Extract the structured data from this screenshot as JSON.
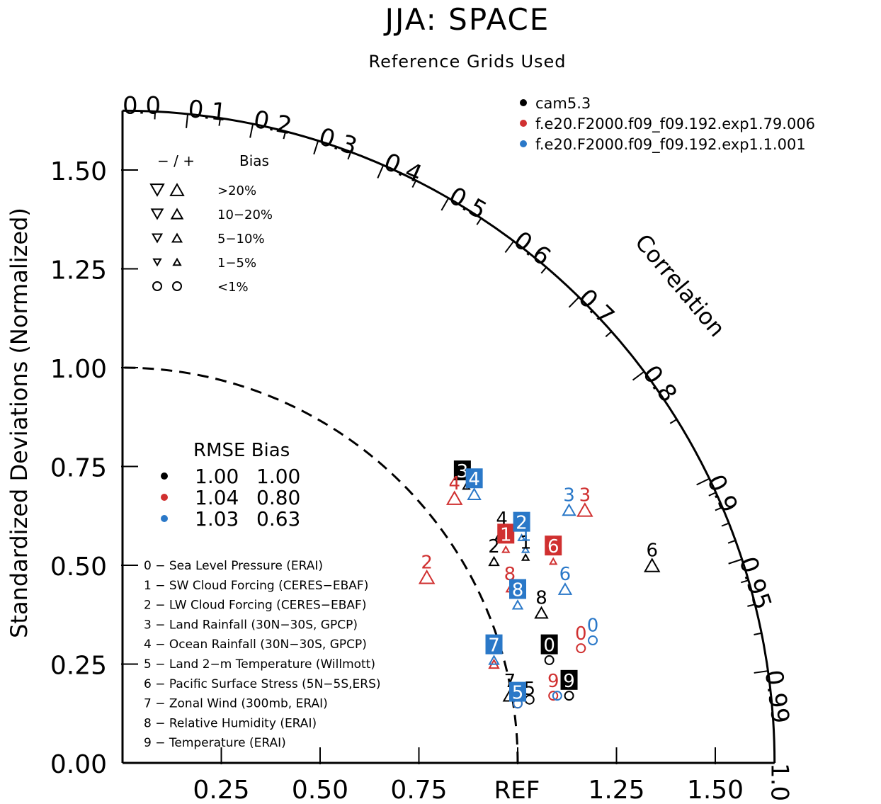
{
  "chart_data": {
    "type": "scatter",
    "diagram": "taylor",
    "title": "JJA: SPACE",
    "subtitle": "Reference Grids Used",
    "ylabel": "Standardized Deviations (Normalized)",
    "angular_label": "Correlation",
    "x_ref_label": "REF",
    "xlim": [
      0,
      1.65
    ],
    "ylim": [
      0,
      1.65
    ],
    "std_ticks_y": [
      "0.00",
      "0.25",
      "0.50",
      "0.75",
      "1.00",
      "1.25",
      "1.50"
    ],
    "std_ticks_x": [
      "0.25",
      "0.50",
      "0.75",
      "1.25",
      "1.50"
    ],
    "correlation_ticks": [
      "0.0",
      "0.1",
      "0.2",
      "0.3",
      "0.4",
      "0.5",
      "0.6",
      "0.7",
      "0.8",
      "0.9",
      "0.95",
      "0.99",
      "1.0"
    ],
    "series": [
      {
        "name": "cam5.3",
        "color": "#000000",
        "rmse": "1.00",
        "bias": "1.00",
        "points": [
          {
            "id": "0",
            "x": 1.08,
            "y": 0.26,
            "bias_class": "<1%"
          },
          {
            "id": "1",
            "x": 1.02,
            "y": 0.52,
            "bias_class": "1-5%"
          },
          {
            "id": "2",
            "x": 0.94,
            "y": 0.51,
            "bias_class": "5-10%"
          },
          {
            "id": "3",
            "x": 0.87,
            "y": 0.7,
            "bias_class": "1-5%"
          },
          {
            "id": "4",
            "x": 0.96,
            "y": 0.58,
            "bias_class": "10-20%"
          },
          {
            "id": "5",
            "x": 1.03,
            "y": 0.16,
            "bias_class": "<1%"
          },
          {
            "id": "6",
            "x": 1.34,
            "y": 0.5,
            "bias_class": ">20%"
          },
          {
            "id": "7",
            "x": 0.98,
            "y": 0.17,
            "bias_class": "10-20%"
          },
          {
            "id": "8",
            "x": 1.06,
            "y": 0.38,
            "bias_class": "10-20%"
          },
          {
            "id": "9",
            "x": 1.13,
            "y": 0.17,
            "bias_class": "<1%"
          }
        ]
      },
      {
        "name": "f.e20.F2000.f09_f09.192.exp1.79.006",
        "color": "#d03030",
        "rmse": "1.04",
        "bias": "0.80",
        "points": [
          {
            "id": "0",
            "x": 1.16,
            "y": 0.29,
            "bias_class": "<1%"
          },
          {
            "id": "1",
            "x": 0.97,
            "y": 0.54,
            "bias_class": "1-5%"
          },
          {
            "id": "2",
            "x": 0.77,
            "y": 0.47,
            "bias_class": ">20%"
          },
          {
            "id": "3",
            "x": 1.17,
            "y": 0.64,
            "bias_class": ">20%"
          },
          {
            "id": "4",
            "x": 0.84,
            "y": 0.67,
            "bias_class": ">20%"
          },
          {
            "id": "5",
            "x": 1.0,
            "y": 0.15,
            "bias_class": "<1%"
          },
          {
            "id": "6",
            "x": 1.09,
            "y": 0.51,
            "bias_class": "1-5%"
          },
          {
            "id": "7",
            "x": 0.94,
            "y": 0.25,
            "bias_class": "5-10%"
          },
          {
            "id": "8",
            "x": 0.98,
            "y": 0.44,
            "bias_class": "1-5%"
          },
          {
            "id": "9",
            "x": 1.09,
            "y": 0.17,
            "bias_class": "<1%"
          }
        ]
      },
      {
        "name": "f.e20.F2000.f09_f09.192.exp1.1.001",
        "color": "#2a78c8",
        "rmse": "1.03",
        "bias": "0.63",
        "points": [
          {
            "id": "0",
            "x": 1.19,
            "y": 0.31,
            "bias_class": "<1%"
          },
          {
            "id": "1",
            "x": 1.02,
            "y": 0.54,
            "bias_class": "1-5%"
          },
          {
            "id": "2",
            "x": 1.01,
            "y": 0.57,
            "bias_class": "1-5%"
          },
          {
            "id": "3",
            "x": 1.13,
            "y": 0.64,
            "bias_class": "10-20%"
          },
          {
            "id": "4",
            "x": 0.89,
            "y": 0.68,
            "bias_class": "10-20%"
          },
          {
            "id": "5",
            "x": 1.0,
            "y": 0.15,
            "bias_class": "<1%"
          },
          {
            "id": "6",
            "x": 1.12,
            "y": 0.44,
            "bias_class": "10-20%"
          },
          {
            "id": "7",
            "x": 0.94,
            "y": 0.26,
            "bias_class": "5-10%"
          },
          {
            "id": "8",
            "x": 1.0,
            "y": 0.4,
            "bias_class": "5-10%"
          },
          {
            "id": "9",
            "x": 1.1,
            "y": 0.17,
            "bias_class": "<1%"
          }
        ]
      }
    ],
    "model_labels": [
      {
        "series": 0,
        "id": "0",
        "x": 1.08,
        "y": 0.3,
        "boxed": true
      },
      {
        "series": 0,
        "id": "1",
        "x": 1.02,
        "y": 0.56,
        "boxed": false
      },
      {
        "series": 0,
        "id": "2",
        "x": 0.94,
        "y": 0.55,
        "boxed": false
      },
      {
        "series": 0,
        "id": "3",
        "x": 0.86,
        "y": 0.74,
        "boxed": true
      },
      {
        "series": 0,
        "id": "4",
        "x": 0.96,
        "y": 0.62,
        "boxed": false
      },
      {
        "series": 0,
        "id": "5",
        "x": 1.03,
        "y": 0.19,
        "boxed": false
      },
      {
        "series": 0,
        "id": "6",
        "x": 1.34,
        "y": 0.54,
        "boxed": false
      },
      {
        "series": 0,
        "id": "7",
        "x": 0.98,
        "y": 0.21,
        "boxed": false
      },
      {
        "series": 0,
        "id": "8",
        "x": 1.06,
        "y": 0.42,
        "boxed": false
      },
      {
        "series": 0,
        "id": "9",
        "x": 1.13,
        "y": 0.21,
        "boxed": true
      },
      {
        "series": 1,
        "id": "0",
        "x": 1.16,
        "y": 0.33,
        "boxed": false
      },
      {
        "series": 1,
        "id": "1",
        "x": 0.97,
        "y": 0.58,
        "boxed": true
      },
      {
        "series": 1,
        "id": "2",
        "x": 0.77,
        "y": 0.51,
        "boxed": false
      },
      {
        "series": 1,
        "id": "3",
        "x": 1.17,
        "y": 0.68,
        "boxed": false
      },
      {
        "series": 1,
        "id": "4",
        "x": 0.84,
        "y": 0.71,
        "boxed": false
      },
      {
        "series": 1,
        "id": "6",
        "x": 1.09,
        "y": 0.55,
        "boxed": true
      },
      {
        "series": 1,
        "id": "8",
        "x": 0.98,
        "y": 0.48,
        "boxed": false
      },
      {
        "series": 1,
        "id": "9",
        "x": 1.09,
        "y": 0.21,
        "boxed": false
      },
      {
        "series": 2,
        "id": "0",
        "x": 1.19,
        "y": 0.35,
        "boxed": false
      },
      {
        "series": 2,
        "id": "1",
        "x": 1.02,
        "y": 0.58,
        "boxed": false
      },
      {
        "series": 2,
        "id": "2",
        "x": 1.01,
        "y": 0.61,
        "boxed": true
      },
      {
        "series": 2,
        "id": "3",
        "x": 1.13,
        "y": 0.68,
        "boxed": false
      },
      {
        "series": 2,
        "id": "4",
        "x": 0.89,
        "y": 0.72,
        "boxed": true
      },
      {
        "series": 2,
        "id": "5",
        "x": 1.0,
        "y": 0.18,
        "boxed": true
      },
      {
        "series": 2,
        "id": "6",
        "x": 1.12,
        "y": 0.48,
        "boxed": false
      },
      {
        "series": 2,
        "id": "7",
        "x": 0.94,
        "y": 0.3,
        "boxed": true
      },
      {
        "series": 2,
        "id": "8",
        "x": 1.0,
        "y": 0.44,
        "boxed": true
      }
    ],
    "bias_legend": {
      "header_signs": "− / +",
      "header_bias": "Bias",
      "rows": [
        {
          "label": ">20%",
          "size": 1.0
        },
        {
          "label": "10−20%",
          "size": 0.85
        },
        {
          "label": "5−10%",
          "size": 0.7
        },
        {
          "label": "1−5%",
          "size": 0.55
        },
        {
          "label": "<1%",
          "size": 0
        }
      ]
    },
    "rmse_legend": {
      "header": "RMSE Bias"
    },
    "case_list": [
      "0 − Sea Level Pressure (ERAI)",
      "1 − SW Cloud Forcing (CERES−EBAF)",
      "2 − LW Cloud Forcing (CERES−EBAF)",
      "3 − Land Rainfall (30N−30S, GPCP)",
      "4 − Ocean Rainfall (30N−30S, GPCP)",
      "5 − Land 2−m Temperature (Willmott)",
      "6 − Pacific Surface Stress (5N−5S,ERS)",
      "7 − Zonal Wind (300mb, ERAI)",
      "8 − Relative Humidity (ERAI)",
      "9 − Temperature (ERAI)"
    ]
  }
}
